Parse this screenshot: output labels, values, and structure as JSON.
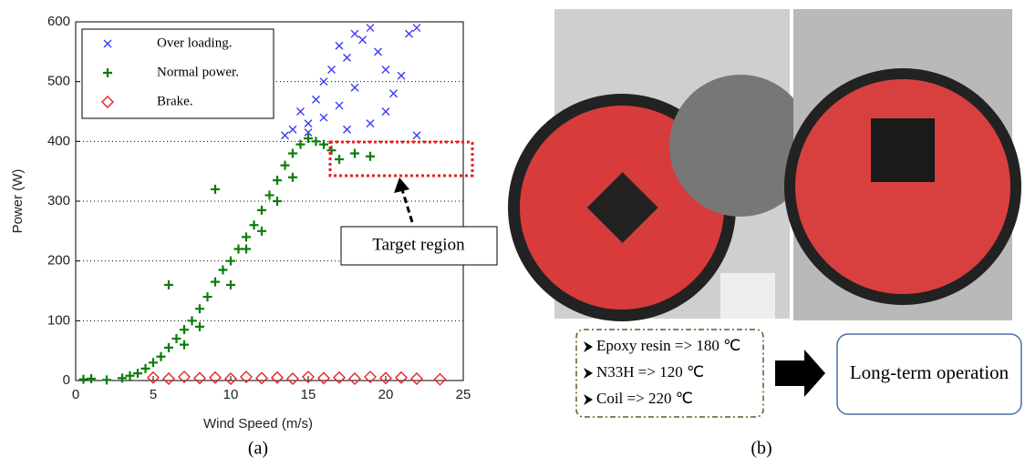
{
  "chart_data": {
    "type": "scatter",
    "xlabel": "Wind Speed (m/s)",
    "ylabel": "Power (W)",
    "xlim": [
      0,
      25
    ],
    "xticks": [
      0,
      5,
      10,
      15,
      20,
      25
    ],
    "ylim": [
      0,
      600
    ],
    "yticks": [
      0,
      100,
      200,
      300,
      400,
      500,
      600
    ],
    "grid": "y",
    "legend": "upper left",
    "annotation": "Target region",
    "series": [
      {
        "name": "Over loading.",
        "color": "#3b3bf0",
        "marker": "x",
        "x": [
          13.5,
          14,
          14.5,
          15,
          15.5,
          16,
          16.5,
          17,
          17.5,
          18,
          18.5,
          19,
          19.5,
          20,
          20.5,
          21,
          21.5,
          22,
          16,
          17,
          18,
          19,
          20,
          22,
          17.5,
          15
        ],
        "values": [
          410,
          420,
          450,
          430,
          470,
          500,
          520,
          560,
          540,
          580,
          570,
          590,
          550,
          520,
          480,
          510,
          580,
          590,
          440,
          460,
          490,
          430,
          450,
          410,
          420,
          415
        ]
      },
      {
        "name": "Normal power.",
        "color": "#0a7d0a",
        "marker": "+",
        "x": [
          0.5,
          1,
          2,
          3,
          3.5,
          4,
          4.5,
          5,
          5.5,
          6,
          6.5,
          7,
          7.5,
          8,
          8.5,
          9,
          9.5,
          10,
          10.5,
          11,
          11.5,
          12,
          12.5,
          13,
          13.5,
          14,
          14.5,
          15,
          15.5,
          16,
          16.5,
          17,
          18,
          19,
          6,
          9,
          11,
          7,
          12,
          10,
          13,
          14,
          8
        ],
        "values": [
          2,
          3,
          1,
          4,
          8,
          12,
          20,
          30,
          40,
          55,
          70,
          85,
          100,
          120,
          140,
          165,
          185,
          200,
          220,
          240,
          260,
          285,
          310,
          335,
          360,
          380,
          395,
          405,
          400,
          395,
          385,
          370,
          380,
          375,
          160,
          320,
          220,
          60,
          250,
          160,
          300,
          340,
          90
        ]
      },
      {
        "name": "Brake.",
        "color": "#e62020",
        "marker": "diamond",
        "x": [
          5,
          6,
          7,
          8,
          9,
          10,
          11,
          12,
          13,
          14,
          15,
          16,
          17,
          18,
          19,
          20,
          21,
          22,
          23.5
        ],
        "values": [
          5,
          3,
          6,
          4,
          5,
          3,
          6,
          4,
          5,
          3,
          6,
          4,
          5,
          3,
          6,
          4,
          5,
          3,
          2
        ]
      }
    ]
  },
  "panel_a_label": "(a)",
  "panel_b": {
    "label": "(b)",
    "notes": [
      "Epoxy resin => 180 ℃",
      "N33H => 120 ℃",
      "Coil => 220 ℃"
    ],
    "result": "Long-term operation"
  }
}
